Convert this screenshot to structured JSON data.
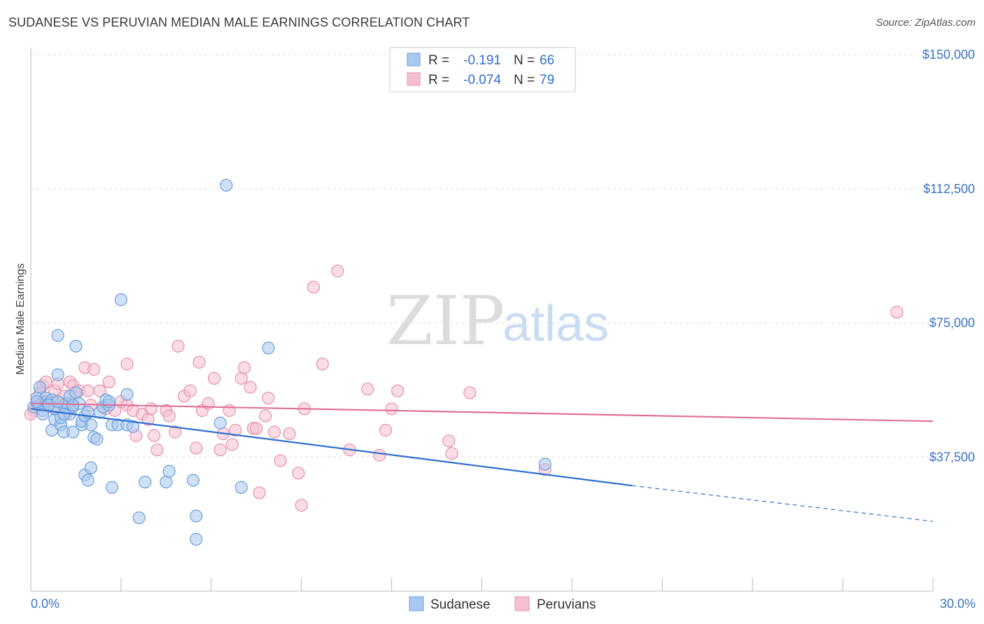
{
  "header": {
    "title": "SUDANESE VS PERUVIAN MEDIAN MALE EARNINGS CORRELATION CHART",
    "source": "Source: ZipAtlas.com"
  },
  "watermark": {
    "zip": "ZIP",
    "atlas": "atlas"
  },
  "colors": {
    "sudanese_fill": "#a9c8ef",
    "sudanese_stroke": "#6a9fdc",
    "sudanese_line": "#2f6fd0",
    "peruvian_fill": "#f6bfd0",
    "peruvian_stroke": "#e890ab",
    "peruvian_line": "#e07099",
    "tick_text": "#3b73c4",
    "grid": "#dddddd"
  },
  "legend": {
    "rows": [
      {
        "series": "Sudanese",
        "r_label": "R =",
        "r_value": "-0.191",
        "n_label": "N =",
        "n_value": "66"
      },
      {
        "series": "Peruvians",
        "r_label": "R =",
        "r_value": "-0.074",
        "n_label": "N =",
        "n_value": "79"
      }
    ]
  },
  "chart_data": {
    "type": "scatter",
    "title": "SUDANESE VS PERUVIAN MEDIAN MALE EARNINGS CORRELATION CHART",
    "xlabel": "",
    "ylabel": "Median Male Earnings",
    "xlim": [
      0,
      30
    ],
    "ylim": [
      0,
      152000
    ],
    "x_tick_labels": [
      "0.0%",
      "30.0%"
    ],
    "y_ticks": [
      37500,
      75000,
      112500,
      150000
    ],
    "y_tick_labels": [
      "$37,500",
      "$75,000",
      "$112,500",
      "$150,000"
    ],
    "grid": true,
    "legend_position": "top-center",
    "series": [
      {
        "name": "Sudanese",
        "r": -0.191,
        "n": 66,
        "trend": {
          "x_start": 0,
          "y_start": 51000,
          "x_solid_end": 20.0,
          "y_solid_end": 29500,
          "x_dashed_end": 30,
          "y_dashed_end": 19500
        },
        "points": [
          [
            0.1,
            51500
          ],
          [
            0.2,
            54000
          ],
          [
            0.3,
            52000
          ],
          [
            0.3,
            57000
          ],
          [
            0.4,
            50500
          ],
          [
            0.5,
            53000
          ],
          [
            0.5,
            54000
          ],
          [
            0.6,
            52500
          ],
          [
            0.7,
            53500
          ],
          [
            0.7,
            45000
          ],
          [
            0.8,
            48000
          ],
          [
            0.8,
            51000
          ],
          [
            0.9,
            60500
          ],
          [
            0.9,
            71500
          ],
          [
            1.0,
            46500
          ],
          [
            1.0,
            48500
          ],
          [
            1.1,
            52000
          ],
          [
            1.1,
            44500
          ],
          [
            1.2,
            52500
          ],
          [
            1.3,
            54500
          ],
          [
            1.3,
            49500
          ],
          [
            1.4,
            51500
          ],
          [
            1.4,
            44500
          ],
          [
            1.5,
            68500
          ],
          [
            1.5,
            55500
          ],
          [
            1.6,
            52500
          ],
          [
            1.7,
            46500
          ],
          [
            1.7,
            47500
          ],
          [
            1.8,
            49000
          ],
          [
            1.8,
            32500
          ],
          [
            1.9,
            31000
          ],
          [
            1.9,
            50000
          ],
          [
            2.0,
            46500
          ],
          [
            2.0,
            34500
          ],
          [
            2.1,
            43000
          ],
          [
            2.2,
            42500
          ],
          [
            2.3,
            50000
          ],
          [
            2.4,
            51500
          ],
          [
            2.5,
            53500
          ],
          [
            2.6,
            52000
          ],
          [
            2.7,
            46500
          ],
          [
            2.7,
            29000
          ],
          [
            2.9,
            46500
          ],
          [
            3.0,
            81500
          ],
          [
            3.2,
            55000
          ],
          [
            3.2,
            46500
          ],
          [
            3.4,
            46000
          ],
          [
            3.6,
            20500
          ],
          [
            3.8,
            30500
          ],
          [
            4.5,
            30500
          ],
          [
            4.6,
            33500
          ],
          [
            5.4,
            31000
          ],
          [
            5.5,
            21000
          ],
          [
            5.5,
            14500
          ],
          [
            6.3,
            47000
          ],
          [
            6.5,
            113500
          ],
          [
            7.0,
            29000
          ],
          [
            7.9,
            68000
          ],
          [
            17.1,
            35500
          ],
          [
            0.2,
            53000
          ],
          [
            0.4,
            49500
          ],
          [
            0.6,
            52000
          ],
          [
            0.9,
            53000
          ],
          [
            1.1,
            49500
          ],
          [
            1.4,
            52000
          ],
          [
            2.6,
            53000
          ]
        ]
      },
      {
        "name": "Peruvians",
        "r": -0.074,
        "n": 79,
        "trend": {
          "x_start": 0,
          "y_start": 52500,
          "x_end": 30,
          "y_end": 47500
        },
        "points": [
          [
            0.1,
            50500
          ],
          [
            0.2,
            52500
          ],
          [
            0.3,
            55500
          ],
          [
            0.4,
            57500
          ],
          [
            0.5,
            58500
          ],
          [
            0.6,
            53000
          ],
          [
            0.7,
            51500
          ],
          [
            0.8,
            56000
          ],
          [
            0.9,
            58000
          ],
          [
            1.0,
            52500
          ],
          [
            1.1,
            54500
          ],
          [
            1.2,
            50000
          ],
          [
            1.3,
            58500
          ],
          [
            1.4,
            57500
          ],
          [
            1.5,
            55500
          ],
          [
            1.6,
            56000
          ],
          [
            1.8,
            62500
          ],
          [
            1.9,
            56000
          ],
          [
            2.0,
            52000
          ],
          [
            2.1,
            62000
          ],
          [
            2.3,
            56000
          ],
          [
            2.5,
            51000
          ],
          [
            2.6,
            58500
          ],
          [
            2.8,
            50500
          ],
          [
            3.0,
            53000
          ],
          [
            3.2,
            52000
          ],
          [
            3.2,
            63500
          ],
          [
            3.4,
            50500
          ],
          [
            3.5,
            43500
          ],
          [
            3.7,
            49500
          ],
          [
            3.9,
            48000
          ],
          [
            4.0,
            51000
          ],
          [
            4.1,
            43500
          ],
          [
            4.2,
            39500
          ],
          [
            4.5,
            50500
          ],
          [
            4.6,
            49000
          ],
          [
            4.8,
            44500
          ],
          [
            4.9,
            68500
          ],
          [
            5.1,
            54500
          ],
          [
            5.3,
            56000
          ],
          [
            5.5,
            40000
          ],
          [
            5.6,
            64000
          ],
          [
            5.7,
            50500
          ],
          [
            5.9,
            52500
          ],
          [
            6.1,
            59500
          ],
          [
            6.3,
            39500
          ],
          [
            6.4,
            44000
          ],
          [
            6.6,
            50500
          ],
          [
            6.7,
            41000
          ],
          [
            6.8,
            45000
          ],
          [
            7.0,
            59500
          ],
          [
            7.1,
            62500
          ],
          [
            7.3,
            57000
          ],
          [
            7.4,
            45500
          ],
          [
            7.5,
            45500
          ],
          [
            7.6,
            27500
          ],
          [
            7.8,
            49000
          ],
          [
            7.9,
            54000
          ],
          [
            8.1,
            44500
          ],
          [
            8.3,
            36500
          ],
          [
            8.6,
            44000
          ],
          [
            8.9,
            33000
          ],
          [
            9.0,
            24000
          ],
          [
            9.1,
            51000
          ],
          [
            9.4,
            85000
          ],
          [
            9.7,
            63500
          ],
          [
            10.2,
            89500
          ],
          [
            10.6,
            39500
          ],
          [
            11.2,
            56500
          ],
          [
            11.6,
            38000
          ],
          [
            11.8,
            45000
          ],
          [
            12.0,
            51000
          ],
          [
            12.2,
            56000
          ],
          [
            13.9,
            42000
          ],
          [
            14.0,
            38500
          ],
          [
            14.6,
            55500
          ],
          [
            17.1,
            34000
          ],
          [
            28.8,
            78000
          ],
          [
            0.0,
            49500
          ]
        ]
      }
    ]
  }
}
